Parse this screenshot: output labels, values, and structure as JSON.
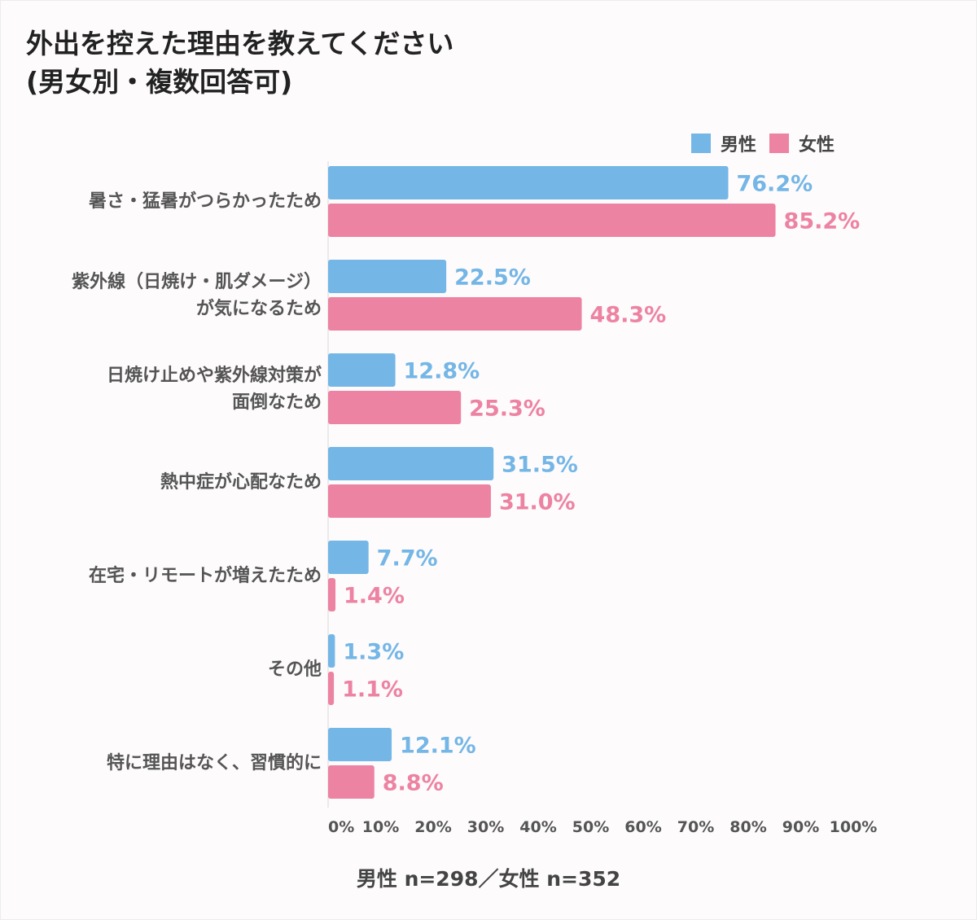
{
  "title_lines": [
    "外出を控えた理由を教えてください",
    "(男女別・複数回答可)"
  ],
  "footnote": "男性 n=298／女性 n=352",
  "colors": {
    "male": "#74b6e6",
    "female": "#ed83a2"
  },
  "chart_data": {
    "type": "bar",
    "orientation": "horizontal",
    "title": "外出を控えた理由を教えてください(男女別・複数回答可)",
    "categories": [
      [
        "暑さ・猛暑がつらかったため"
      ],
      [
        "紫外線（日焼け・肌ダメージ）",
        "が気になるため"
      ],
      [
        "日焼け止めや紫外線対策が",
        "面倒なため"
      ],
      [
        "熱中症が心配なため"
      ],
      [
        "在宅・リモートが増えたため"
      ],
      [
        "その他"
      ],
      [
        "特に理由はなく、習慣的に"
      ]
    ],
    "series": [
      {
        "name": "男性",
        "values": [
          76.2,
          22.5,
          12.8,
          31.5,
          7.7,
          1.3,
          12.1
        ],
        "labels": [
          "76.2%",
          "22.5%",
          "12.8%",
          "31.5%",
          "7.7%",
          "1.3%",
          "12.1%"
        ]
      },
      {
        "name": "女性",
        "values": [
          85.2,
          48.3,
          25.3,
          31.0,
          1.4,
          1.1,
          8.8
        ],
        "labels": [
          "85.2%",
          "48.3%",
          "25.3%",
          "31.0%",
          "1.4%",
          "1.1%",
          "8.8%"
        ]
      }
    ],
    "xlim": [
      0,
      100
    ],
    "xticks": [
      "0%",
      "10%",
      "20%",
      "30%",
      "40%",
      "50%",
      "60%",
      "70%",
      "80%",
      "90%",
      "100%"
    ],
    "legend_position": "top-right",
    "grid": false
  }
}
